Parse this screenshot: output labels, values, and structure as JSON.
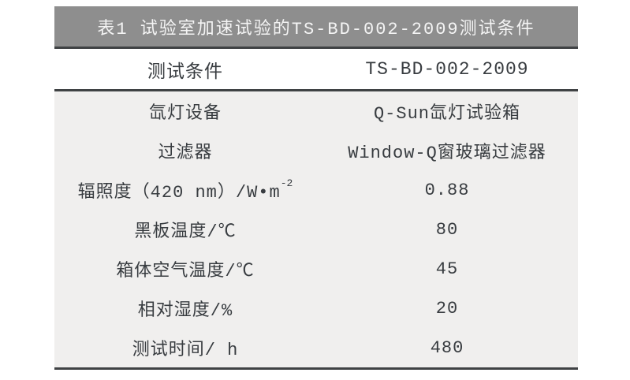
{
  "table": {
    "title": "表1 试验室加速试验的TS-BD-002-2009测试条件",
    "header": {
      "label": "测试条件",
      "value": "TS-BD-002-2009"
    },
    "rows": [
      {
        "label": "氙灯设备",
        "value": "Q-Sun氙灯试验箱"
      },
      {
        "label": "过滤器",
        "value": "Window-Q窗玻璃过滤器"
      },
      {
        "label": "辐照度（420 nm）/W•m",
        "label_sup": "-2",
        "value": "0.88"
      },
      {
        "label": "黑板温度/℃",
        "value": "80"
      },
      {
        "label": "箱体空气温度/℃",
        "value": "45"
      },
      {
        "label": "相对湿度/%",
        "value": "20"
      },
      {
        "label": "测试时间/ h",
        "value": "480"
      }
    ],
    "colors": {
      "title_bar_bg": "#8e8e8e",
      "title_text": "#f4f4f4",
      "body_bg": "#f0efee",
      "rule": "#3f4244",
      "text": "#383c40"
    }
  }
}
